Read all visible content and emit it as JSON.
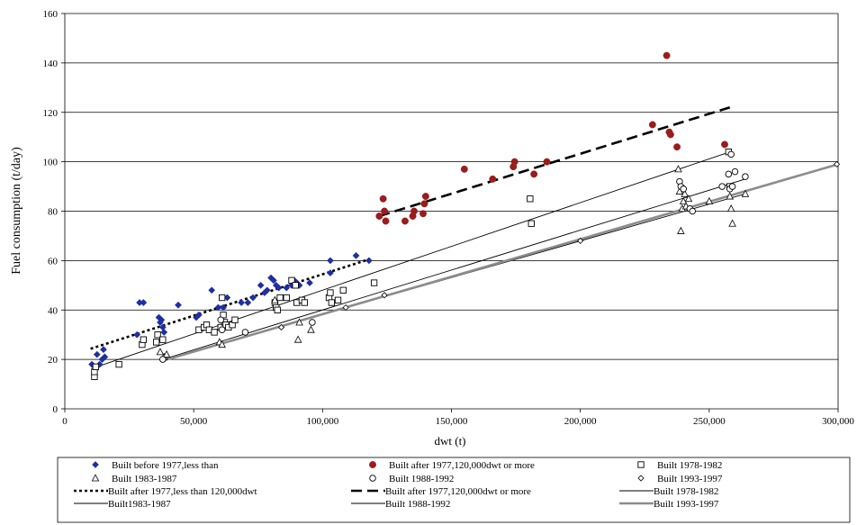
{
  "chart_data": {
    "type": "scatter",
    "xlabel": "dwt (t)",
    "ylabel": "Fuel consumption (t/day)",
    "xlim": [
      0,
      300000
    ],
    "ylim": [
      0,
      160
    ],
    "x_ticks": [
      0,
      50000,
      100000,
      150000,
      200000,
      250000,
      300000
    ],
    "x_tick_labels": [
      "0",
      "50,000",
      "100,000",
      "150,000",
      "200,000",
      "250,000",
      "300,000"
    ],
    "y_ticks": [
      0,
      20,
      40,
      60,
      80,
      100,
      120,
      140,
      160
    ],
    "y_tick_labels": [
      "0",
      "20",
      "40",
      "60",
      "80",
      "100",
      "120",
      "140",
      "160"
    ],
    "grid": "horizontal",
    "legend_position": "bottom",
    "series": [
      {
        "name": "Built before 1977,less than",
        "marker": "diamond-filled",
        "color": "#1f2fa0",
        "points": [
          [
            10500,
            18
          ],
          [
            11500,
            17
          ],
          [
            12500,
            22
          ],
          [
            13500,
            18
          ],
          [
            14500,
            20
          ],
          [
            15000,
            24
          ],
          [
            15500,
            21
          ],
          [
            28000,
            30
          ],
          [
            29000,
            43
          ],
          [
            30500,
            43
          ],
          [
            36500,
            37
          ],
          [
            37000,
            35
          ],
          [
            37500,
            36
          ],
          [
            38000,
            33
          ],
          [
            38500,
            31
          ],
          [
            44000,
            42
          ],
          [
            51000,
            37
          ],
          [
            52000,
            38
          ],
          [
            57000,
            48
          ],
          [
            59500,
            41
          ],
          [
            61500,
            41
          ],
          [
            63000,
            45
          ],
          [
            68500,
            43
          ],
          [
            71000,
            43
          ],
          [
            73000,
            45
          ],
          [
            76000,
            50
          ],
          [
            77500,
            47
          ],
          [
            78500,
            48
          ],
          [
            80000,
            53
          ],
          [
            81000,
            52
          ],
          [
            82000,
            50
          ],
          [
            83000,
            49
          ],
          [
            86000,
            49
          ],
          [
            88000,
            50
          ],
          [
            89000,
            52
          ],
          [
            90000,
            51
          ],
          [
            91000,
            50
          ],
          [
            95000,
            51
          ],
          [
            103000,
            55
          ],
          [
            103000,
            60
          ],
          [
            113000,
            62
          ],
          [
            118000,
            60
          ]
        ]
      },
      {
        "name": "Built after 1977,120,000dwt or more",
        "marker": "circle-filled",
        "color": "#9b1c1c",
        "points": [
          [
            122000,
            78
          ],
          [
            123500,
            85
          ],
          [
            124000,
            80
          ],
          [
            124500,
            76
          ],
          [
            132000,
            76
          ],
          [
            135000,
            78
          ],
          [
            135500,
            80
          ],
          [
            139000,
            79
          ],
          [
            139500,
            83
          ],
          [
            140000,
            86
          ],
          [
            155000,
            97
          ],
          [
            166000,
            93
          ],
          [
            174000,
            98
          ],
          [
            174500,
            100
          ],
          [
            182000,
            95
          ],
          [
            187000,
            100
          ],
          [
            228000,
            115
          ],
          [
            233500,
            143
          ],
          [
            234500,
            112
          ],
          [
            235000,
            111
          ],
          [
            237500,
            106
          ],
          [
            256000,
            107
          ]
        ]
      },
      {
        "name": "Built 1978-1982",
        "marker": "square-open",
        "color": "#000000",
        "points": [
          [
            11500,
            13
          ],
          [
            11500,
            15
          ],
          [
            12000,
            17
          ],
          [
            21000,
            18
          ],
          [
            30000,
            26
          ],
          [
            30500,
            28
          ],
          [
            35500,
            27
          ],
          [
            36000,
            30
          ],
          [
            38000,
            28
          ],
          [
            52000,
            32
          ],
          [
            54000,
            33
          ],
          [
            55000,
            34
          ],
          [
            56000,
            32
          ],
          [
            58000,
            31
          ],
          [
            60500,
            33
          ],
          [
            61000,
            45
          ],
          [
            61500,
            38
          ],
          [
            62000,
            35
          ],
          [
            62500,
            34
          ],
          [
            63500,
            33
          ],
          [
            65000,
            34
          ],
          [
            66000,
            36
          ],
          [
            81500,
            43
          ],
          [
            82000,
            41
          ],
          [
            82500,
            40
          ],
          [
            83500,
            45
          ],
          [
            86000,
            45
          ],
          [
            88000,
            52
          ],
          [
            89500,
            50
          ],
          [
            90000,
            43
          ],
          [
            92000,
            44
          ],
          [
            93000,
            43
          ],
          [
            102500,
            45
          ],
          [
            103000,
            47
          ],
          [
            103500,
            43
          ],
          [
            106000,
            44
          ],
          [
            108000,
            48
          ],
          [
            120000,
            51
          ],
          [
            180500,
            85
          ],
          [
            181000,
            75
          ],
          [
            257500,
            104
          ],
          [
            258000,
            90
          ]
        ]
      },
      {
        "name": "Built 1983-1987",
        "marker": "triangle-open",
        "color": "#000000",
        "points": [
          [
            37000,
            23
          ],
          [
            38500,
            21
          ],
          [
            39500,
            22
          ],
          [
            60000,
            27
          ],
          [
            61000,
            26
          ],
          [
            81500,
            44
          ],
          [
            90500,
            28
          ],
          [
            91000,
            35
          ],
          [
            95500,
            32
          ],
          [
            238000,
            97
          ],
          [
            238500,
            88
          ],
          [
            239000,
            72
          ],
          [
            239500,
            81
          ],
          [
            240000,
            84
          ],
          [
            240500,
            87
          ],
          [
            241000,
            82
          ],
          [
            242000,
            85
          ],
          [
            250000,
            84
          ],
          [
            258000,
            86
          ],
          [
            258500,
            81
          ],
          [
            259000,
            75
          ],
          [
            264000,
            87
          ]
        ]
      },
      {
        "name": "Built 1988-1992",
        "marker": "circle-open",
        "color": "#000000",
        "points": [
          [
            38000,
            20
          ],
          [
            60500,
            36
          ],
          [
            61000,
            32
          ],
          [
            70000,
            31
          ],
          [
            96000,
            35
          ],
          [
            238500,
            92
          ],
          [
            239000,
            90
          ],
          [
            240000,
            89
          ],
          [
            242500,
            81
          ],
          [
            243500,
            80
          ],
          [
            255000,
            90
          ],
          [
            257500,
            95
          ],
          [
            258000,
            89
          ],
          [
            258500,
            103
          ],
          [
            259000,
            90
          ],
          [
            260000,
            96
          ],
          [
            264000,
            94
          ]
        ]
      },
      {
        "name": "Built 1993-1997",
        "marker": "diamond-open",
        "color": "#000000",
        "points": [
          [
            84000,
            33
          ],
          [
            109000,
            41
          ],
          [
            124000,
            46
          ],
          [
            200000,
            68
          ],
          [
            299500,
            99
          ]
        ]
      }
    ],
    "trendlines": [
      {
        "name": "Built after 1977,less than 120,000dwt",
        "style": "dotted-bold",
        "color": "#000000",
        "x": [
          10000,
          118000
        ],
        "y": [
          24.3,
          60.5
        ]
      },
      {
        "name": "Built after 1977,120,000dwt or more",
        "style": "dashed-bold",
        "color": "#000000",
        "x": [
          122000,
          258000
        ],
        "y": [
          78,
          122
        ]
      },
      {
        "name": "Built 1978-1982",
        "style": "thin",
        "color": "#000000",
        "x": [
          11000,
          258000
        ],
        "y": [
          16.5,
          104
        ]
      },
      {
        "name": "Built1983-1987",
        "style": "thin",
        "color": "#000000",
        "x": [
          37000,
          264000
        ],
        "y": [
          19.5,
          87
        ]
      },
      {
        "name": "Built 1988-1992",
        "style": "thin",
        "color": "#000000",
        "x": [
          38000,
          264000
        ],
        "y": [
          20,
          93
        ]
      },
      {
        "name": "Built 1993-1997",
        "style": "thick-gray",
        "color": "#8c8c8c",
        "x": [
          38000,
          300000
        ],
        "y": [
          19.5,
          99
        ]
      }
    ],
    "legend": [
      {
        "label": "Built before 1977,less than",
        "symbol": "diamond-filled",
        "color": "#1f2fa0"
      },
      {
        "label": "Built after 1977,120,000dwt or more",
        "symbol": "circle-filled",
        "color": "#9b1c1c"
      },
      {
        "label": "Built 1978-1982",
        "symbol": "square-open",
        "color": "#000000"
      },
      {
        "label": "Built 1983-1987",
        "symbol": "triangle-open",
        "color": "#000000"
      },
      {
        "label": "Built 1988-1992",
        "symbol": "circle-open",
        "color": "#000000"
      },
      {
        "label": "Built 1993-1997",
        "symbol": "diamond-open",
        "color": "#000000"
      },
      {
        "label": "Built after 1977,less than 120,000dwt",
        "symbol": "dotted-bold",
        "color": "#000000"
      },
      {
        "label": "Built after 1977,120,000dwt or more",
        "symbol": "dashed-bold",
        "color": "#000000"
      },
      {
        "label": "Built 1978-1982",
        "symbol": "thin",
        "color": "#000000"
      },
      {
        "label": "Built1983-1987",
        "symbol": "thin",
        "color": "#000000"
      },
      {
        "label": "Built 1988-1992",
        "symbol": "thin",
        "color": "#000000"
      },
      {
        "label": "Built 1993-1997",
        "symbol": "thick-gray",
        "color": "#8c8c8c"
      }
    ]
  }
}
